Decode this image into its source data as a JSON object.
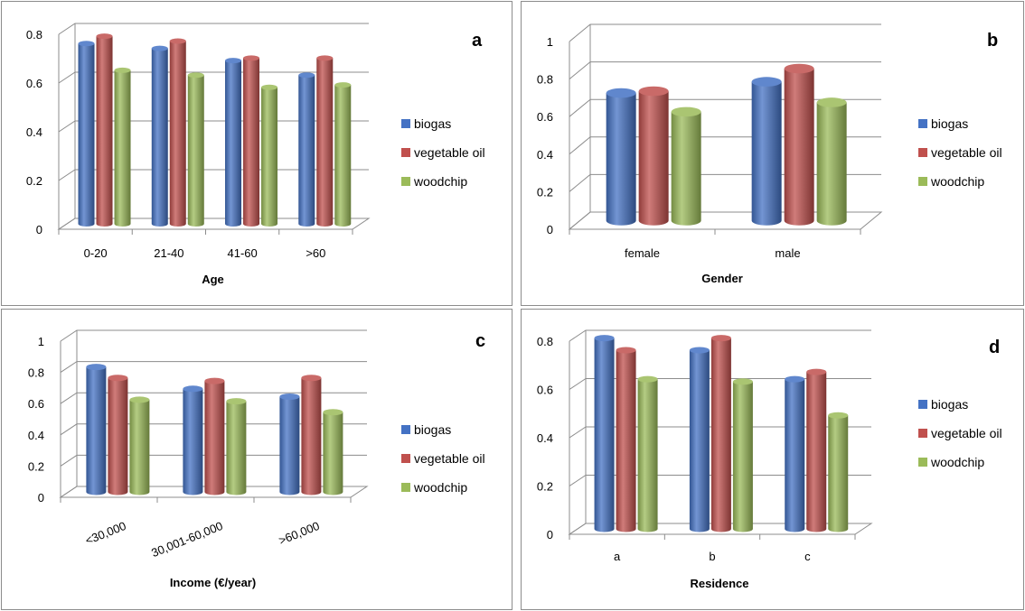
{
  "colors": {
    "biogas": "#4472c4",
    "vegetable oil": "#c0504d",
    "woodchip": "#9bbb59"
  },
  "chart_data": [
    {
      "type": "bar",
      "panel_label": "a",
      "xlabel": "Age",
      "ylabel": "",
      "categories": [
        "0-20",
        "21-40",
        "41-60",
        ">60"
      ],
      "ylim": [
        0,
        0.8
      ],
      "yticks": [
        0,
        0.2,
        0.4,
        0.6,
        0.8
      ],
      "series": [
        {
          "name": "biogas",
          "values": [
            0.74,
            0.72,
            0.67,
            0.61
          ]
        },
        {
          "name": "vegetable oil",
          "values": [
            0.77,
            0.75,
            0.68,
            0.68
          ]
        },
        {
          "name": "woodchip",
          "values": [
            0.63,
            0.61,
            0.56,
            0.57
          ]
        }
      ],
      "legend": "right",
      "grid": true
    },
    {
      "type": "bar",
      "panel_label": "b",
      "xlabel": "Gender",
      "ylabel": "",
      "categories": [
        "female",
        "male"
      ],
      "ylim": [
        0,
        1
      ],
      "yticks": [
        0,
        0.2,
        0.4,
        0.6,
        0.8,
        1
      ],
      "series": [
        {
          "name": "biogas",
          "values": [
            0.68,
            0.74
          ]
        },
        {
          "name": "vegetable oil",
          "values": [
            0.69,
            0.81
          ]
        },
        {
          "name": "woodchip",
          "values": [
            0.58,
            0.63
          ]
        }
      ],
      "legend": "right",
      "grid": true
    },
    {
      "type": "bar",
      "panel_label": "c",
      "xlabel": "Income (€/year)",
      "ylabel": "",
      "categories": [
        "<30,000",
        "30,001-60,000",
        ">60,000"
      ],
      "ylim": [
        0,
        1
      ],
      "yticks": [
        0,
        0.2,
        0.4,
        0.6,
        0.8,
        1
      ],
      "series": [
        {
          "name": "biogas",
          "values": [
            0.8,
            0.66,
            0.61
          ]
        },
        {
          "name": "vegetable oil",
          "values": [
            0.73,
            0.71,
            0.73
          ]
        },
        {
          "name": "woodchip",
          "values": [
            0.59,
            0.58,
            0.51
          ]
        }
      ],
      "legend": "right",
      "grid": true
    },
    {
      "type": "bar",
      "panel_label": "d",
      "xlabel": "Residence",
      "ylabel": "",
      "categories": [
        "a",
        "b",
        "c"
      ],
      "ylim": [
        0,
        0.8
      ],
      "yticks": [
        0,
        0.2,
        0.4,
        0.6,
        0.8
      ],
      "series": [
        {
          "name": "biogas",
          "values": [
            0.79,
            0.74,
            0.62
          ]
        },
        {
          "name": "vegetable oil",
          "values": [
            0.74,
            0.79,
            0.65
          ]
        },
        {
          "name": "woodchip",
          "values": [
            0.62,
            0.61,
            0.47
          ]
        }
      ],
      "legend": "right",
      "grid": true
    }
  ]
}
